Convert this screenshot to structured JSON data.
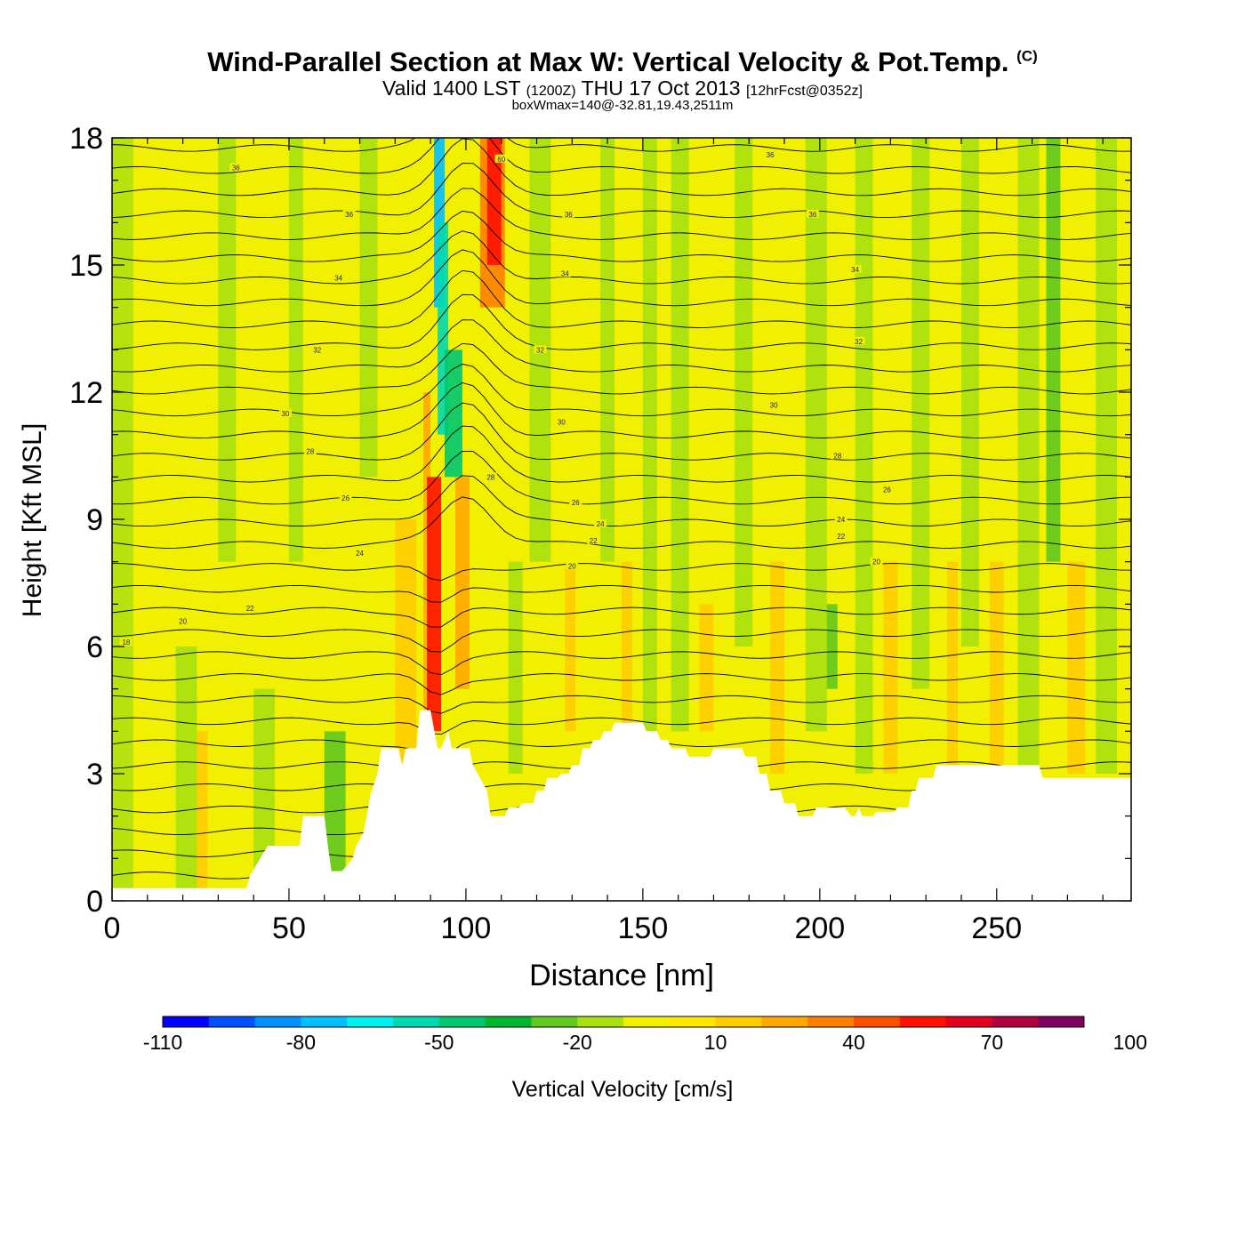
{
  "title": {
    "main": "Wind-Parallel Section at Max W: Vertical Velocity & Pot.Temp.",
    "copyright": "(C)",
    "valid_prefix": "Valid 1400 LST",
    "valid_z": "(1200Z)",
    "valid_date": "THU 17 Oct 2013",
    "forecast": "[12hrFcst@0352z]",
    "info": "boxWmax=140@-32.81,19.43,2511m"
  },
  "chart_data": {
    "type": "heatmap",
    "xlabel": "Distance [nm]",
    "ylabel": "Height [Kft MSL]",
    "xlim": [
      0,
      288
    ],
    "ylim": [
      0,
      18
    ],
    "x_ticks": [
      0,
      50,
      100,
      150,
      200,
      250
    ],
    "y_ticks": [
      0,
      3,
      6,
      9,
      12,
      15,
      18
    ],
    "colorbar": {
      "label": "Vertical Velocity [cm/s]",
      "tick_labels": [
        "-110",
        "-80",
        "-50",
        "-20",
        "10",
        "40",
        "70",
        "100"
      ],
      "colors": [
        "#0000ff",
        "#0050ff",
        "#0090ff",
        "#00c0ff",
        "#00f0f0",
        "#00d8b0",
        "#00c870",
        "#00b830",
        "#60c820",
        "#a8e010",
        "#f0f000",
        "#ffe800",
        "#ffcc00",
        "#ffa800",
        "#ff8000",
        "#ff5000",
        "#ff1000",
        "#e00020",
        "#b00040",
        "#800060"
      ]
    },
    "contour_labels": [
      "36",
      "36",
      "36",
      "36",
      "36",
      "34",
      "34",
      "34",
      "32",
      "32",
      "32",
      "30",
      "30",
      "30",
      "28",
      "28",
      "28",
      "26",
      "26",
      "26",
      "24",
      "24",
      "24",
      "22",
      "22",
      "22",
      "20",
      "20",
      "18",
      "20",
      "60"
    ],
    "terrain": {
      "x": [
        0,
        38,
        39,
        44,
        53,
        54,
        60,
        61,
        62,
        65,
        68,
        69,
        71,
        72,
        73,
        75,
        76,
        81,
        82,
        83,
        86,
        87,
        90,
        92,
        93,
        95,
        96,
        101,
        102,
        106,
        107,
        111,
        112,
        115,
        116,
        119,
        120,
        122,
        123,
        126,
        127,
        129,
        130,
        132,
        133,
        135,
        136,
        138,
        139,
        141,
        142,
        150,
        151,
        154,
        155,
        157,
        158,
        162,
        163,
        169,
        170,
        178,
        179,
        182,
        183,
        185,
        186,
        189,
        190,
        193,
        194,
        198,
        199,
        207,
        208,
        209,
        210,
        211,
        212,
        215,
        216,
        221,
        222,
        225,
        226,
        227,
        228,
        232,
        233,
        240,
        241,
        252,
        253,
        262,
        263,
        272,
        288
      ],
      "y": [
        0.3,
        0.3,
        0.6,
        1.3,
        1.3,
        2.0,
        2.0,
        1.3,
        0.7,
        0.7,
        1.0,
        1.3,
        1.6,
        2.0,
        2.5,
        3.0,
        3.6,
        3.6,
        3.2,
        3.6,
        3.6,
        4.5,
        4.5,
        3.6,
        3.6,
        4.0,
        3.6,
        3.6,
        3.2,
        2.6,
        2.0,
        2.0,
        2.2,
        2.2,
        2.3,
        2.3,
        2.6,
        2.6,
        2.9,
        2.9,
        3.0,
        3.0,
        3.2,
        3.2,
        3.6,
        3.6,
        3.8,
        3.8,
        4.0,
        4.0,
        4.2,
        4.2,
        4.0,
        4.0,
        3.8,
        3.8,
        3.6,
        3.6,
        3.4,
        3.4,
        3.6,
        3.6,
        3.4,
        3.4,
        3.0,
        3.0,
        2.6,
        2.6,
        2.3,
        2.3,
        2.0,
        2.0,
        2.2,
        2.2,
        2.1,
        2.0,
        2.0,
        2.2,
        2.0,
        2.0,
        2.1,
        2.1,
        2.2,
        2.2,
        2.6,
        2.6,
        2.9,
        2.9,
        3.2,
        3.2,
        3.2,
        3.2,
        3.2,
        3.2,
        2.9,
        2.9,
        2.9
      ]
    }
  }
}
